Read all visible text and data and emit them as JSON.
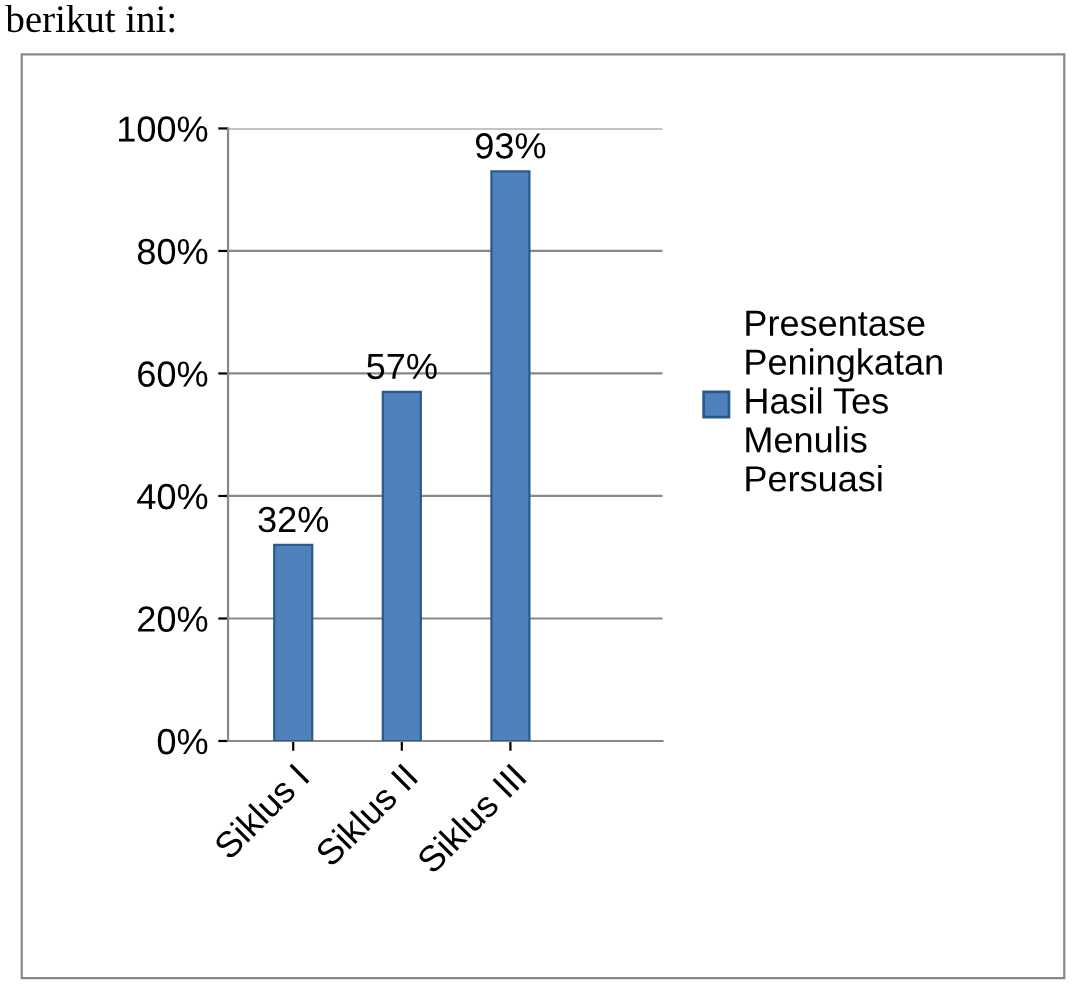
{
  "chart_data": {
    "type": "bar",
    "categories": [
      "Siklus I",
      "Siklus II",
      "Siklus III"
    ],
    "series": [
      {
        "name": "Presentase Peningkatan Hasil Tes Menulis Persuasi",
        "color": "#4f81bd",
        "values": [
          32,
          57,
          93
        ]
      }
    ],
    "value_labels": [
      "32%",
      "57%",
      "93%"
    ],
    "ylim": [
      0,
      100
    ],
    "yticks": [
      {
        "value": 0,
        "label": "0%"
      },
      {
        "value": 20,
        "label": "20%"
      },
      {
        "value": 40,
        "label": "40%"
      },
      {
        "value": 60,
        "label": "60%"
      },
      {
        "value": 80,
        "label": "80%"
      },
      {
        "value": 100,
        "label": "100%"
      }
    ],
    "grid": "y",
    "legend": "right",
    "annotations": [
      "berikut ini:"
    ]
  }
}
